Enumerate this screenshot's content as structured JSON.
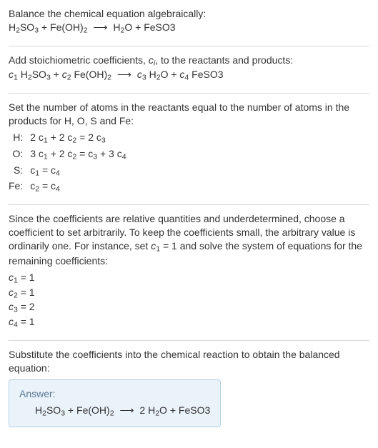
{
  "colors": {
    "text": "#333333",
    "separator": "#d9d9d9",
    "answer_bg": "#eaf2fa",
    "answer_border": "#b2cfe5",
    "answer_label": "#5a7790",
    "background": "#ffffff"
  },
  "typography": {
    "base_fontsize_pt": 10.5,
    "sub_scale": 0.75,
    "line_height": 1.35,
    "font_family": "Segoe UI / Arial"
  },
  "step1": {
    "title": "Balance the chemical equation algebraically:",
    "equation": {
      "lhs": [
        {
          "formula": "H2SO3"
        },
        {
          "formula": "Fe(OH)2"
        }
      ],
      "rhs": [
        {
          "formula": "H2O"
        },
        {
          "formula": "FeSO3"
        }
      ],
      "arrow": "⟶",
      "plus": " + "
    }
  },
  "step2": {
    "text_a": "Add stoichiometric coefficients, ",
    "coef_sym": "c",
    "coef_sub": "i",
    "text_b": ", to the reactants and products:",
    "equation": {
      "lhs": [
        {
          "coef": "c",
          "sub": "1",
          "formula": "H2SO3"
        },
        {
          "coef": "c",
          "sub": "2",
          "formula": "Fe(OH)2"
        }
      ],
      "rhs": [
        {
          "coef": "c",
          "sub": "3",
          "formula": "H2O"
        },
        {
          "coef": "c",
          "sub": "4",
          "formula": "FeSO3"
        }
      ],
      "arrow": "⟶",
      "plus": " + "
    }
  },
  "step3": {
    "text": "Set the number of atoms in the reactants equal to the number of atoms in the products for H, O, S and Fe:",
    "rows": [
      {
        "el": "H:",
        "eq_lhs_a": "2 c",
        "eq_lhs_a_sub": "1",
        "eq_plus1": " + ",
        "eq_lhs_b": "2 c",
        "eq_lhs_b_sub": "2",
        "eq_eq": " = ",
        "eq_rhs_a": "2 c",
        "eq_rhs_a_sub": "3",
        "eq_plus2": "",
        "eq_rhs_b": "",
        "eq_rhs_b_sub": ""
      },
      {
        "el": "O:",
        "eq_lhs_a": "3 c",
        "eq_lhs_a_sub": "1",
        "eq_plus1": " + ",
        "eq_lhs_b": "2 c",
        "eq_lhs_b_sub": "2",
        "eq_eq": " = ",
        "eq_rhs_a": "c",
        "eq_rhs_a_sub": "3",
        "eq_plus2": " + ",
        "eq_rhs_b": "3 c",
        "eq_rhs_b_sub": "4"
      },
      {
        "el": "S:",
        "eq_lhs_a": "c",
        "eq_lhs_a_sub": "1",
        "eq_plus1": "",
        "eq_lhs_b": "",
        "eq_lhs_b_sub": "",
        "eq_eq": " = ",
        "eq_rhs_a": "c",
        "eq_rhs_a_sub": "4",
        "eq_plus2": "",
        "eq_rhs_b": "",
        "eq_rhs_b_sub": ""
      },
      {
        "el": "Fe:",
        "eq_lhs_a": "c",
        "eq_lhs_a_sub": "2",
        "eq_plus1": "",
        "eq_lhs_b": "",
        "eq_lhs_b_sub": "",
        "eq_eq": " = ",
        "eq_rhs_a": "c",
        "eq_rhs_a_sub": "4",
        "eq_plus2": "",
        "eq_rhs_b": "",
        "eq_rhs_b_sub": ""
      }
    ]
  },
  "step4": {
    "text_a": "Since the coefficients are relative quantities and underdetermined, choose a coefficient to set arbitrarily. To keep the coefficients small, the arbitrary value is ordinarily one. For instance, set ",
    "set_sym": "c",
    "set_sub": "1",
    "set_val": " = 1",
    "text_b": " and solve the system of equations for the remaining coefficients:",
    "solutions": [
      {
        "sym": "c",
        "sub": "1",
        "val": " = 1"
      },
      {
        "sym": "c",
        "sub": "2",
        "val": " = 1"
      },
      {
        "sym": "c",
        "sub": "3",
        "val": " = 2"
      },
      {
        "sym": "c",
        "sub": "4",
        "val": " = 1"
      }
    ]
  },
  "step5": {
    "text": "Substitute the coefficients into the chemical reaction to obtain the balanced equation:"
  },
  "answer": {
    "label": "Answer:",
    "equation": {
      "lhs": [
        {
          "coef": "",
          "formula": "H2SO3"
        },
        {
          "coef": "",
          "formula": "Fe(OH)2"
        }
      ],
      "rhs": [
        {
          "coef": "2 ",
          "formula": "H2O"
        },
        {
          "coef": "",
          "formula": "FeSO3"
        }
      ],
      "arrow": "⟶",
      "plus": " + "
    }
  },
  "formulas": {
    "H2SO3": [
      {
        "t": "H"
      },
      {
        "s": "2"
      },
      {
        "t": "SO"
      },
      {
        "s": "3"
      }
    ],
    "Fe(OH)2": [
      {
        "t": "Fe(OH)"
      },
      {
        "s": "2"
      }
    ],
    "H2O": [
      {
        "t": "H"
      },
      {
        "s": "2"
      },
      {
        "t": "O"
      }
    ],
    "FeSO3": [
      {
        "t": "FeSO3"
      }
    ]
  }
}
